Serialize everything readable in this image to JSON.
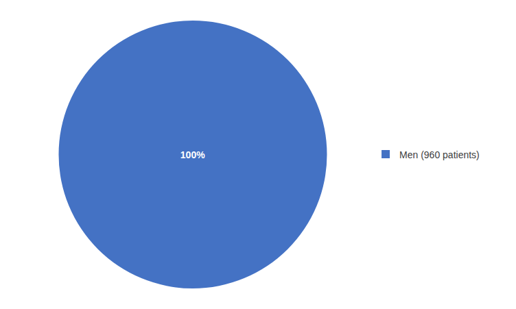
{
  "chart_data": {
    "type": "pie",
    "categories": [
      "Men (960 patients)"
    ],
    "values": [
      100
    ],
    "value_labels": [
      "100%"
    ],
    "colors": [
      "#4472C4"
    ],
    "data_labels": true,
    "legend": "right"
  }
}
